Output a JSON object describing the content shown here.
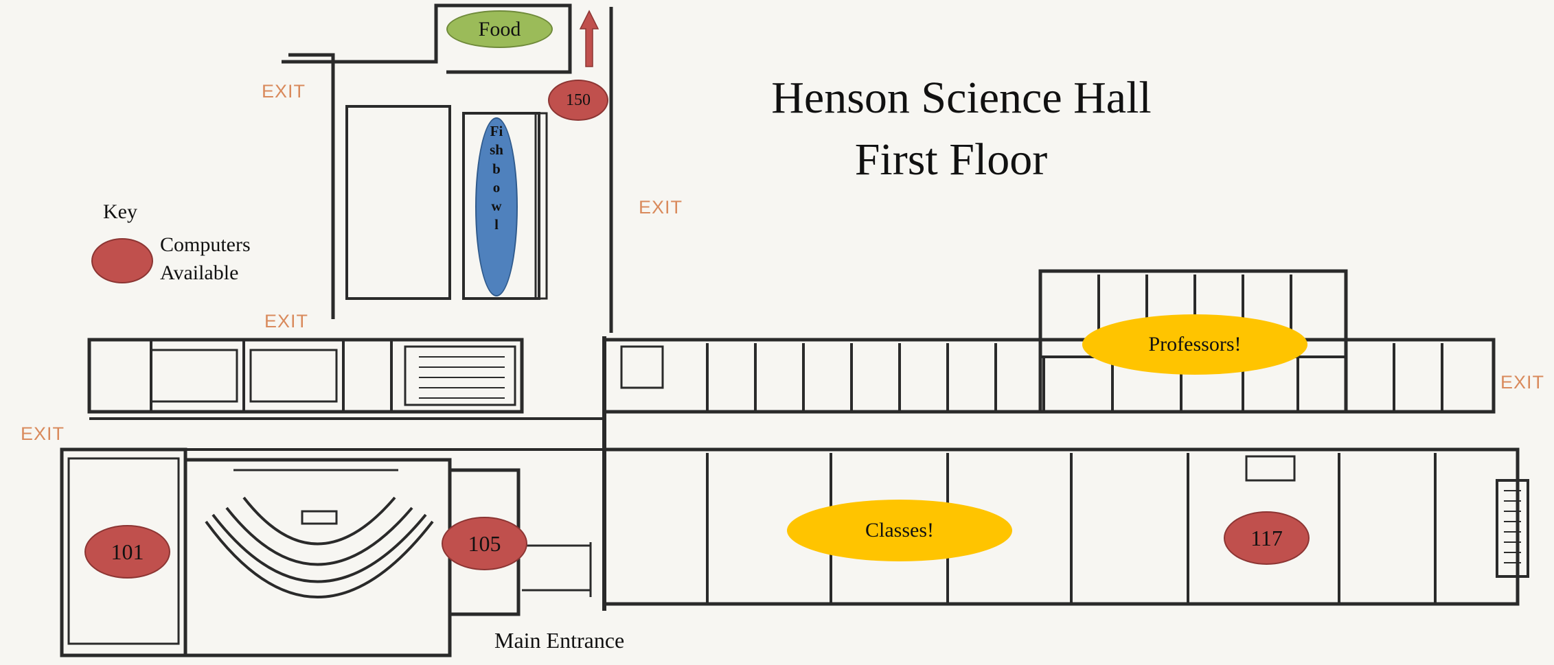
{
  "title": {
    "line1": "Henson Science Hall",
    "line2": "First Floor"
  },
  "key": {
    "title": "Key",
    "line1": "Computers",
    "line2": "Available",
    "swatch_color": "#c0504d"
  },
  "exits": [
    "EXIT",
    "EXIT",
    "EXIT",
    "EXIT",
    "EXIT"
  ],
  "areas": {
    "food": "Food",
    "fishbowl": "Fishbowl",
    "professors": "Professors!",
    "classes": "Classes!",
    "main_entrance": "Main Entrance"
  },
  "rooms": {
    "r150": "150",
    "r101": "101",
    "r105": "105",
    "r117": "117"
  },
  "colors": {
    "computers": "#c0504d",
    "zones": "#ffc400",
    "food": "#9bbb59",
    "fishbowl": "#4f81bd",
    "exit_text": "#d98a5c",
    "arrow": "#c0504d"
  }
}
